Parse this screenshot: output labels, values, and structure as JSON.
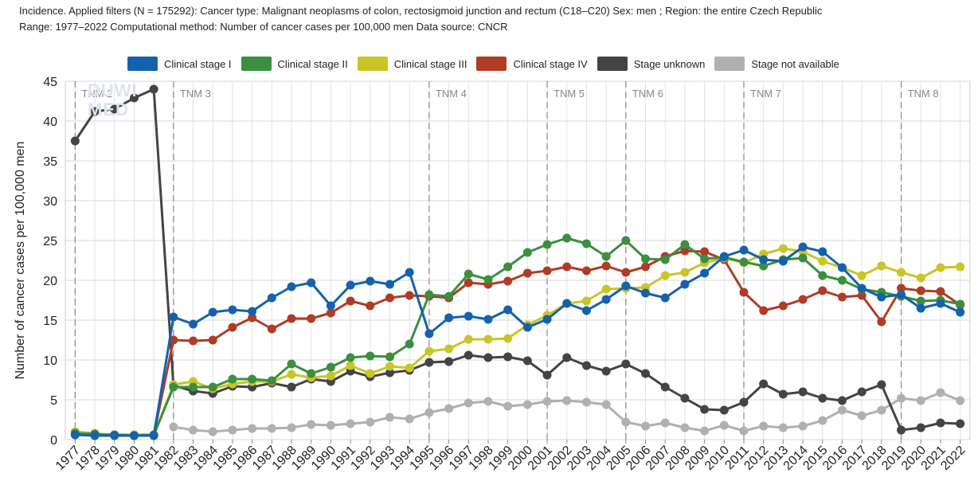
{
  "header": {
    "line1": "Incidence. Applied filters (N = 175292): Cancer type: Malignant neoplasms of colon, rectosigmoid junction and rectum (C18–C20) Sex: men ; Region: the entire Czech Republic",
    "line2": "Range: 1977–2022 Computational method: Number of cancer cases per 100,000 men Data source: CNCR"
  },
  "watermark": {
    "line1": "DUWI",
    "line2": "MED"
  },
  "chart_data": {
    "type": "line",
    "ylabel": "Number of cancer cases per 100,000 men",
    "xlabel": "",
    "ylim": [
      0,
      45
    ],
    "yticks": [
      0,
      5,
      10,
      15,
      20,
      25,
      30,
      35,
      40,
      45
    ],
    "grid": true,
    "legend_position": "top",
    "x": [
      "1977",
      "1978",
      "1979",
      "1980",
      "1981",
      "1982",
      "1983",
      "1984",
      "1985",
      "1986",
      "1987",
      "1988",
      "1989",
      "1990",
      "1991",
      "1992",
      "1993",
      "1994",
      "1995",
      "1996",
      "1997",
      "1998",
      "1999",
      "2000",
      "2001",
      "2002",
      "2003",
      "2004",
      "2005",
      "2006",
      "2007",
      "2008",
      "2009",
      "2010",
      "2011",
      "2012",
      "2013",
      "2014",
      "2015",
      "2016",
      "2017",
      "2018",
      "2019",
      "2020",
      "2021",
      "2022"
    ],
    "tnm_markers": [
      {
        "label": "TNM 2",
        "year": "1977"
      },
      {
        "label": "TNM 3",
        "year": "1982"
      },
      {
        "label": "TNM 4",
        "year": "1995"
      },
      {
        "label": "TNM 5",
        "year": "2001"
      },
      {
        "label": "TNM 6",
        "year": "2005"
      },
      {
        "label": "TNM 7",
        "year": "2011"
      },
      {
        "label": "TNM 8",
        "year": "2019"
      }
    ],
    "series": [
      {
        "name": "Clinical stage I",
        "color": "#1462ad",
        "values": [
          0.6,
          0.5,
          0.5,
          0.5,
          0.5,
          15.4,
          14.5,
          16.0,
          16.3,
          16.1,
          17.8,
          19.2,
          19.7,
          16.8,
          19.4,
          19.9,
          19.5,
          21.0,
          13.3,
          15.3,
          15.5,
          15.1,
          16.3,
          14.1,
          15.1,
          17.1,
          16.2,
          17.6,
          19.3,
          18.4,
          17.8,
          19.5,
          20.9,
          23.0,
          23.8,
          22.6,
          22.4,
          24.2,
          23.6,
          21.6,
          19.0,
          17.9,
          18.2,
          16.5,
          17.1,
          16.0
        ]
      },
      {
        "name": "Clinical stage II",
        "color": "#3b8f3f",
        "values": [
          0.8,
          0.7,
          0.6,
          0.5,
          0.6,
          6.6,
          6.6,
          6.6,
          7.6,
          7.6,
          7.4,
          9.5,
          8.3,
          9.1,
          10.3,
          10.5,
          10.4,
          12.0,
          18.2,
          18.0,
          20.8,
          20.1,
          21.7,
          23.5,
          24.5,
          25.3,
          24.6,
          23.0,
          25.0,
          22.7,
          22.6,
          24.5,
          22.7,
          22.9,
          22.3,
          21.8,
          22.6,
          22.8,
          20.6,
          20.0,
          18.9,
          18.5,
          18.0,
          17.4,
          17.5,
          17.0
        ]
      },
      {
        "name": "Clinical stage III",
        "color": "#c9c526",
        "values": [
          1.0,
          0.8,
          0.5,
          0.6,
          0.5,
          6.9,
          7.3,
          6.4,
          7.0,
          7.3,
          7.3,
          8.2,
          7.8,
          8.0,
          9.3,
          8.3,
          9.2,
          9.0,
          11.1,
          11.4,
          12.6,
          12.6,
          12.7,
          14.4,
          15.6,
          17.1,
          17.4,
          18.9,
          19.0,
          19.1,
          20.6,
          21.0,
          22.2,
          22.8,
          22.2,
          23.3,
          24.0,
          23.6,
          22.4,
          21.6,
          20.6,
          21.8,
          21.0,
          20.3,
          21.6,
          21.7
        ]
      },
      {
        "name": "Clinical stage IV",
        "color": "#b03c26",
        "values": [
          0.8,
          0.7,
          0.6,
          0.6,
          0.6,
          12.5,
          12.4,
          12.5,
          14.1,
          15.3,
          13.9,
          15.2,
          15.2,
          15.9,
          17.4,
          16.8,
          17.8,
          18.1,
          18.0,
          17.8,
          19.7,
          19.5,
          19.9,
          20.9,
          21.2,
          21.7,
          21.2,
          21.8,
          21.0,
          21.7,
          23.0,
          23.7,
          23.6,
          22.6,
          18.5,
          16.2,
          16.8,
          17.6,
          18.7,
          17.9,
          18.1,
          14.8,
          19.0,
          18.7,
          18.6,
          16.9
        ]
      },
      {
        "name": "Stage unknown",
        "color": "#444444",
        "values": [
          37.5,
          41.2,
          41.5,
          42.9,
          44.0,
          6.8,
          6.1,
          5.8,
          6.7,
          6.6,
          7.1,
          6.6,
          7.6,
          7.3,
          8.6,
          7.9,
          8.4,
          8.7,
          9.7,
          9.8,
          10.6,
          10.3,
          10.4,
          9.9,
          8.1,
          10.3,
          9.3,
          8.6,
          9.5,
          8.3,
          6.6,
          5.2,
          3.8,
          3.7,
          4.7,
          7.0,
          5.7,
          6.0,
          5.2,
          4.9,
          6.0,
          6.9,
          1.2,
          1.5,
          2.1,
          2.0
        ]
      },
      {
        "name": "Stage not available",
        "color": "#b0b0b0",
        "values": [
          null,
          null,
          null,
          null,
          null,
          1.6,
          1.2,
          1.0,
          1.2,
          1.4,
          1.4,
          1.5,
          1.9,
          1.8,
          2.0,
          2.2,
          2.8,
          2.6,
          3.4,
          3.9,
          4.6,
          4.8,
          4.2,
          4.4,
          4.8,
          4.9,
          4.7,
          4.4,
          2.2,
          1.7,
          2.1,
          1.5,
          1.1,
          1.8,
          1.1,
          1.7,
          1.5,
          1.7,
          2.4,
          3.7,
          3.0,
          3.7,
          5.2,
          4.9,
          5.9,
          4.9
        ]
      }
    ]
  }
}
